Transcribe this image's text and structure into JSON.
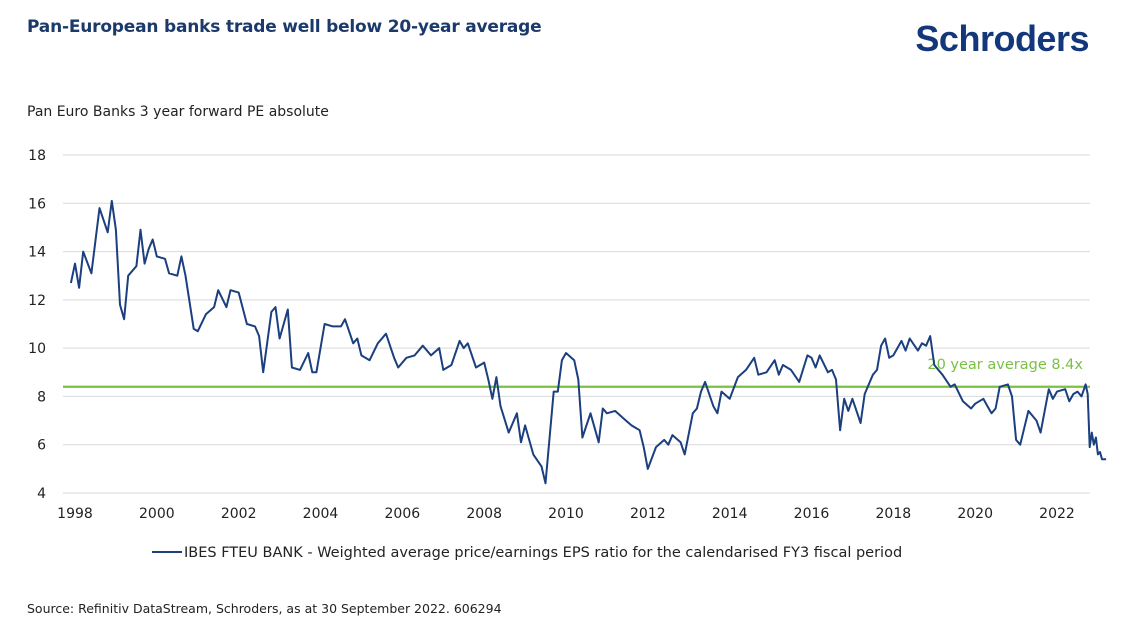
{
  "header": {
    "title": "Pan-European banks trade well below 20-year average",
    "logo": "Schroders"
  },
  "footer": {
    "source": "Source: Refinitiv DataStream, Schroders, as at 30 September 2022. 606294"
  },
  "colors": {
    "title": "#1b3a6b",
    "logo": "#13377a",
    "series": "#1b3f7f",
    "average_line": "#7ac143",
    "grid": "#d9d9d9"
  },
  "chart_data": {
    "type": "line",
    "title": "Pan Euro Banks 3 year forward PE absolute",
    "xlabel": "",
    "ylabel": "",
    "xlim": [
      1997.9,
      2022.8
    ],
    "ylim": [
      4,
      18
    ],
    "x_ticks": [
      1998,
      2000,
      2002,
      2004,
      2006,
      2008,
      2010,
      2012,
      2014,
      2016,
      2018,
      2020,
      2022
    ],
    "y_ticks": [
      4,
      6,
      8,
      10,
      12,
      14,
      16,
      18
    ],
    "grid": "horizontal",
    "legend_position": "bottom",
    "reference_line": {
      "value": 8.4,
      "label": "20 year average 8.4x"
    },
    "series": [
      {
        "name": "IBES FTEU BANK - Weighted average price/earnings EPS ratio for the calendarised FY3 fiscal period",
        "points": [
          [
            1997.9,
            12.7
          ],
          [
            1998.0,
            13.5
          ],
          [
            1998.1,
            12.5
          ],
          [
            1998.2,
            14.0
          ],
          [
            1998.4,
            13.1
          ],
          [
            1998.6,
            15.8
          ],
          [
            1998.8,
            14.8
          ],
          [
            1998.9,
            16.1
          ],
          [
            1999.0,
            14.9
          ],
          [
            1999.1,
            11.8
          ],
          [
            1999.2,
            11.2
          ],
          [
            1999.3,
            13.0
          ],
          [
            1999.5,
            13.4
          ],
          [
            1999.6,
            14.9
          ],
          [
            1999.7,
            13.5
          ],
          [
            1999.8,
            14.1
          ],
          [
            1999.9,
            14.5
          ],
          [
            2000.0,
            13.8
          ],
          [
            2000.2,
            13.7
          ],
          [
            2000.3,
            13.1
          ],
          [
            2000.5,
            13.0
          ],
          [
            2000.6,
            13.8
          ],
          [
            2000.7,
            13.0
          ],
          [
            2000.9,
            10.8
          ],
          [
            2001.0,
            10.7
          ],
          [
            2001.2,
            11.4
          ],
          [
            2001.4,
            11.7
          ],
          [
            2001.5,
            12.4
          ],
          [
            2001.7,
            11.7
          ],
          [
            2001.8,
            12.4
          ],
          [
            2002.0,
            12.3
          ],
          [
            2002.2,
            11.0
          ],
          [
            2002.4,
            10.9
          ],
          [
            2002.5,
            10.5
          ],
          [
            2002.6,
            9.0
          ],
          [
            2002.8,
            11.5
          ],
          [
            2002.9,
            11.7
          ],
          [
            2003.0,
            10.4
          ],
          [
            2003.2,
            11.6
          ],
          [
            2003.3,
            9.2
          ],
          [
            2003.5,
            9.1
          ],
          [
            2003.7,
            9.8
          ],
          [
            2003.8,
            9.0
          ],
          [
            2003.9,
            9.0
          ],
          [
            2004.1,
            11.0
          ],
          [
            2004.3,
            10.9
          ],
          [
            2004.5,
            10.9
          ],
          [
            2004.6,
            11.2
          ],
          [
            2004.8,
            10.2
          ],
          [
            2004.9,
            10.4
          ],
          [
            2005.0,
            9.7
          ],
          [
            2005.2,
            9.5
          ],
          [
            2005.4,
            10.2
          ],
          [
            2005.6,
            10.6
          ],
          [
            2005.8,
            9.6
          ],
          [
            2005.9,
            9.2
          ],
          [
            2006.1,
            9.6
          ],
          [
            2006.3,
            9.7
          ],
          [
            2006.5,
            10.1
          ],
          [
            2006.7,
            9.7
          ],
          [
            2006.9,
            10.0
          ],
          [
            2007.0,
            9.1
          ],
          [
            2007.2,
            9.3
          ],
          [
            2007.4,
            10.3
          ],
          [
            2007.5,
            10.0
          ],
          [
            2007.6,
            10.2
          ],
          [
            2007.8,
            9.2
          ],
          [
            2008.0,
            9.4
          ],
          [
            2008.1,
            8.7
          ],
          [
            2008.2,
            7.9
          ],
          [
            2008.3,
            8.8
          ],
          [
            2008.4,
            7.6
          ],
          [
            2008.6,
            6.5
          ],
          [
            2008.8,
            7.3
          ],
          [
            2008.9,
            6.1
          ],
          [
            2009.0,
            6.8
          ],
          [
            2009.2,
            5.6
          ],
          [
            2009.4,
            5.1
          ],
          [
            2009.5,
            4.4
          ],
          [
            2009.7,
            8.2
          ],
          [
            2009.8,
            8.2
          ],
          [
            2009.9,
            9.5
          ],
          [
            2010.0,
            9.8
          ],
          [
            2010.2,
            9.5
          ],
          [
            2010.3,
            8.7
          ],
          [
            2010.4,
            6.3
          ],
          [
            2010.6,
            7.3
          ],
          [
            2010.8,
            6.1
          ],
          [
            2010.9,
            7.5
          ],
          [
            2011.0,
            7.3
          ],
          [
            2011.2,
            7.4
          ],
          [
            2011.4,
            7.1
          ],
          [
            2011.6,
            6.8
          ],
          [
            2011.8,
            6.6
          ],
          [
            2011.9,
            5.9
          ],
          [
            2012.0,
            5.0
          ],
          [
            2012.2,
            5.9
          ],
          [
            2012.4,
            6.2
          ],
          [
            2012.5,
            6.0
          ],
          [
            2012.6,
            6.4
          ],
          [
            2012.8,
            6.1
          ],
          [
            2012.9,
            5.6
          ],
          [
            2013.1,
            7.3
          ],
          [
            2013.2,
            7.5
          ],
          [
            2013.3,
            8.2
          ],
          [
            2013.4,
            8.6
          ],
          [
            2013.6,
            7.6
          ],
          [
            2013.7,
            7.3
          ],
          [
            2013.8,
            8.2
          ],
          [
            2014.0,
            7.9
          ],
          [
            2014.2,
            8.8
          ],
          [
            2014.4,
            9.1
          ],
          [
            2014.6,
            9.6
          ],
          [
            2014.7,
            8.9
          ],
          [
            2014.9,
            9.0
          ],
          [
            2015.1,
            9.5
          ],
          [
            2015.2,
            8.9
          ],
          [
            2015.3,
            9.3
          ],
          [
            2015.5,
            9.1
          ],
          [
            2015.7,
            8.6
          ],
          [
            2015.9,
            9.7
          ],
          [
            2016.0,
            9.6
          ],
          [
            2016.1,
            9.2
          ],
          [
            2016.2,
            9.7
          ],
          [
            2016.4,
            9.0
          ],
          [
            2016.5,
            9.1
          ],
          [
            2016.6,
            8.7
          ],
          [
            2016.7,
            6.6
          ],
          [
            2016.8,
            7.9
          ],
          [
            2016.9,
            7.4
          ],
          [
            2017.0,
            7.9
          ],
          [
            2017.2,
            6.9
          ],
          [
            2017.3,
            8.1
          ],
          [
            2017.5,
            8.9
          ],
          [
            2017.6,
            9.1
          ],
          [
            2017.7,
            10.1
          ],
          [
            2017.8,
            10.4
          ],
          [
            2017.9,
            9.6
          ],
          [
            2018.0,
            9.7
          ],
          [
            2018.2,
            10.3
          ],
          [
            2018.3,
            9.9
          ],
          [
            2018.4,
            10.4
          ],
          [
            2018.6,
            9.9
          ],
          [
            2018.7,
            10.2
          ],
          [
            2018.8,
            10.1
          ],
          [
            2018.9,
            10.5
          ],
          [
            2019.0,
            9.3
          ],
          [
            2019.2,
            8.9
          ],
          [
            2019.4,
            8.4
          ],
          [
            2019.5,
            8.5
          ],
          [
            2019.7,
            7.8
          ],
          [
            2019.9,
            7.5
          ],
          [
            2020.0,
            7.7
          ],
          [
            2020.2,
            7.9
          ],
          [
            2020.3,
            7.6
          ],
          [
            2020.4,
            7.3
          ],
          [
            2020.5,
            7.5
          ],
          [
            2020.6,
            8.4
          ],
          [
            2020.8,
            8.5
          ],
          [
            2020.9,
            8.0
          ],
          [
            2021.0,
            6.2
          ],
          [
            2021.1,
            6.0
          ],
          [
            2021.3,
            7.4
          ],
          [
            2021.5,
            7.0
          ],
          [
            2021.6,
            6.5
          ],
          [
            2021.8,
            8.3
          ],
          [
            2021.9,
            7.9
          ],
          [
            2022.0,
            8.2
          ],
          [
            2022.2,
            8.3
          ],
          [
            2022.3,
            7.8
          ],
          [
            2022.4,
            8.1
          ],
          [
            2022.5,
            8.2
          ],
          [
            2022.6,
            8.0
          ],
          [
            2022.7,
            8.5
          ],
          [
            2022.75,
            8.1
          ],
          [
            2022.8,
            5.9
          ],
          [
            2022.85,
            6.5
          ],
          [
            2022.9,
            6.0
          ],
          [
            2022.95,
            6.3
          ],
          [
            2023.0,
            5.6
          ],
          [
            2023.05,
            5.7
          ],
          [
            2023.1,
            5.4
          ],
          [
            2023.2,
            5.4
          ]
        ]
      }
    ]
  }
}
